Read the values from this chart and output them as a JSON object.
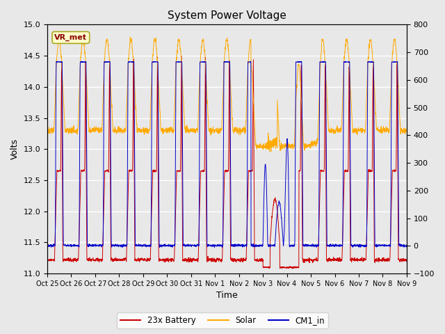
{
  "title": "System Power Voltage",
  "xlabel": "Time",
  "ylabel_left": "Volts",
  "ylim_left": [
    11.0,
    15.0
  ],
  "ylim_right": [
    -100,
    800
  ],
  "x_tick_labels": [
    "Oct 25",
    "Oct 26",
    "Oct 27",
    "Oct 28",
    "Oct 29",
    "Oct 30",
    "Oct 31",
    "Nov 1",
    "Nov 2",
    "Nov 3",
    "Nov 4",
    "Nov 5",
    "Nov 6",
    "Nov 7",
    "Nov 8",
    "Nov 9"
  ],
  "legend_labels": [
    "23x Battery",
    "Solar",
    "CM1_in"
  ],
  "battery_color": "#cc0000",
  "solar_color": "#ffaa00",
  "cm1_color": "#0000cc",
  "vr_met_label": "VR_met",
  "vr_met_facecolor": "#ffffcc",
  "vr_met_edgecolor": "#aaa820",
  "vr_met_textcolor": "#880000",
  "fig_facecolor": "#e8e8e8",
  "axes_facecolor": "#e8e8e8",
  "grid_color": "#ffffff",
  "title_fontsize": 11,
  "n_days": 15,
  "pts_per_day": 144,
  "seed": 42
}
